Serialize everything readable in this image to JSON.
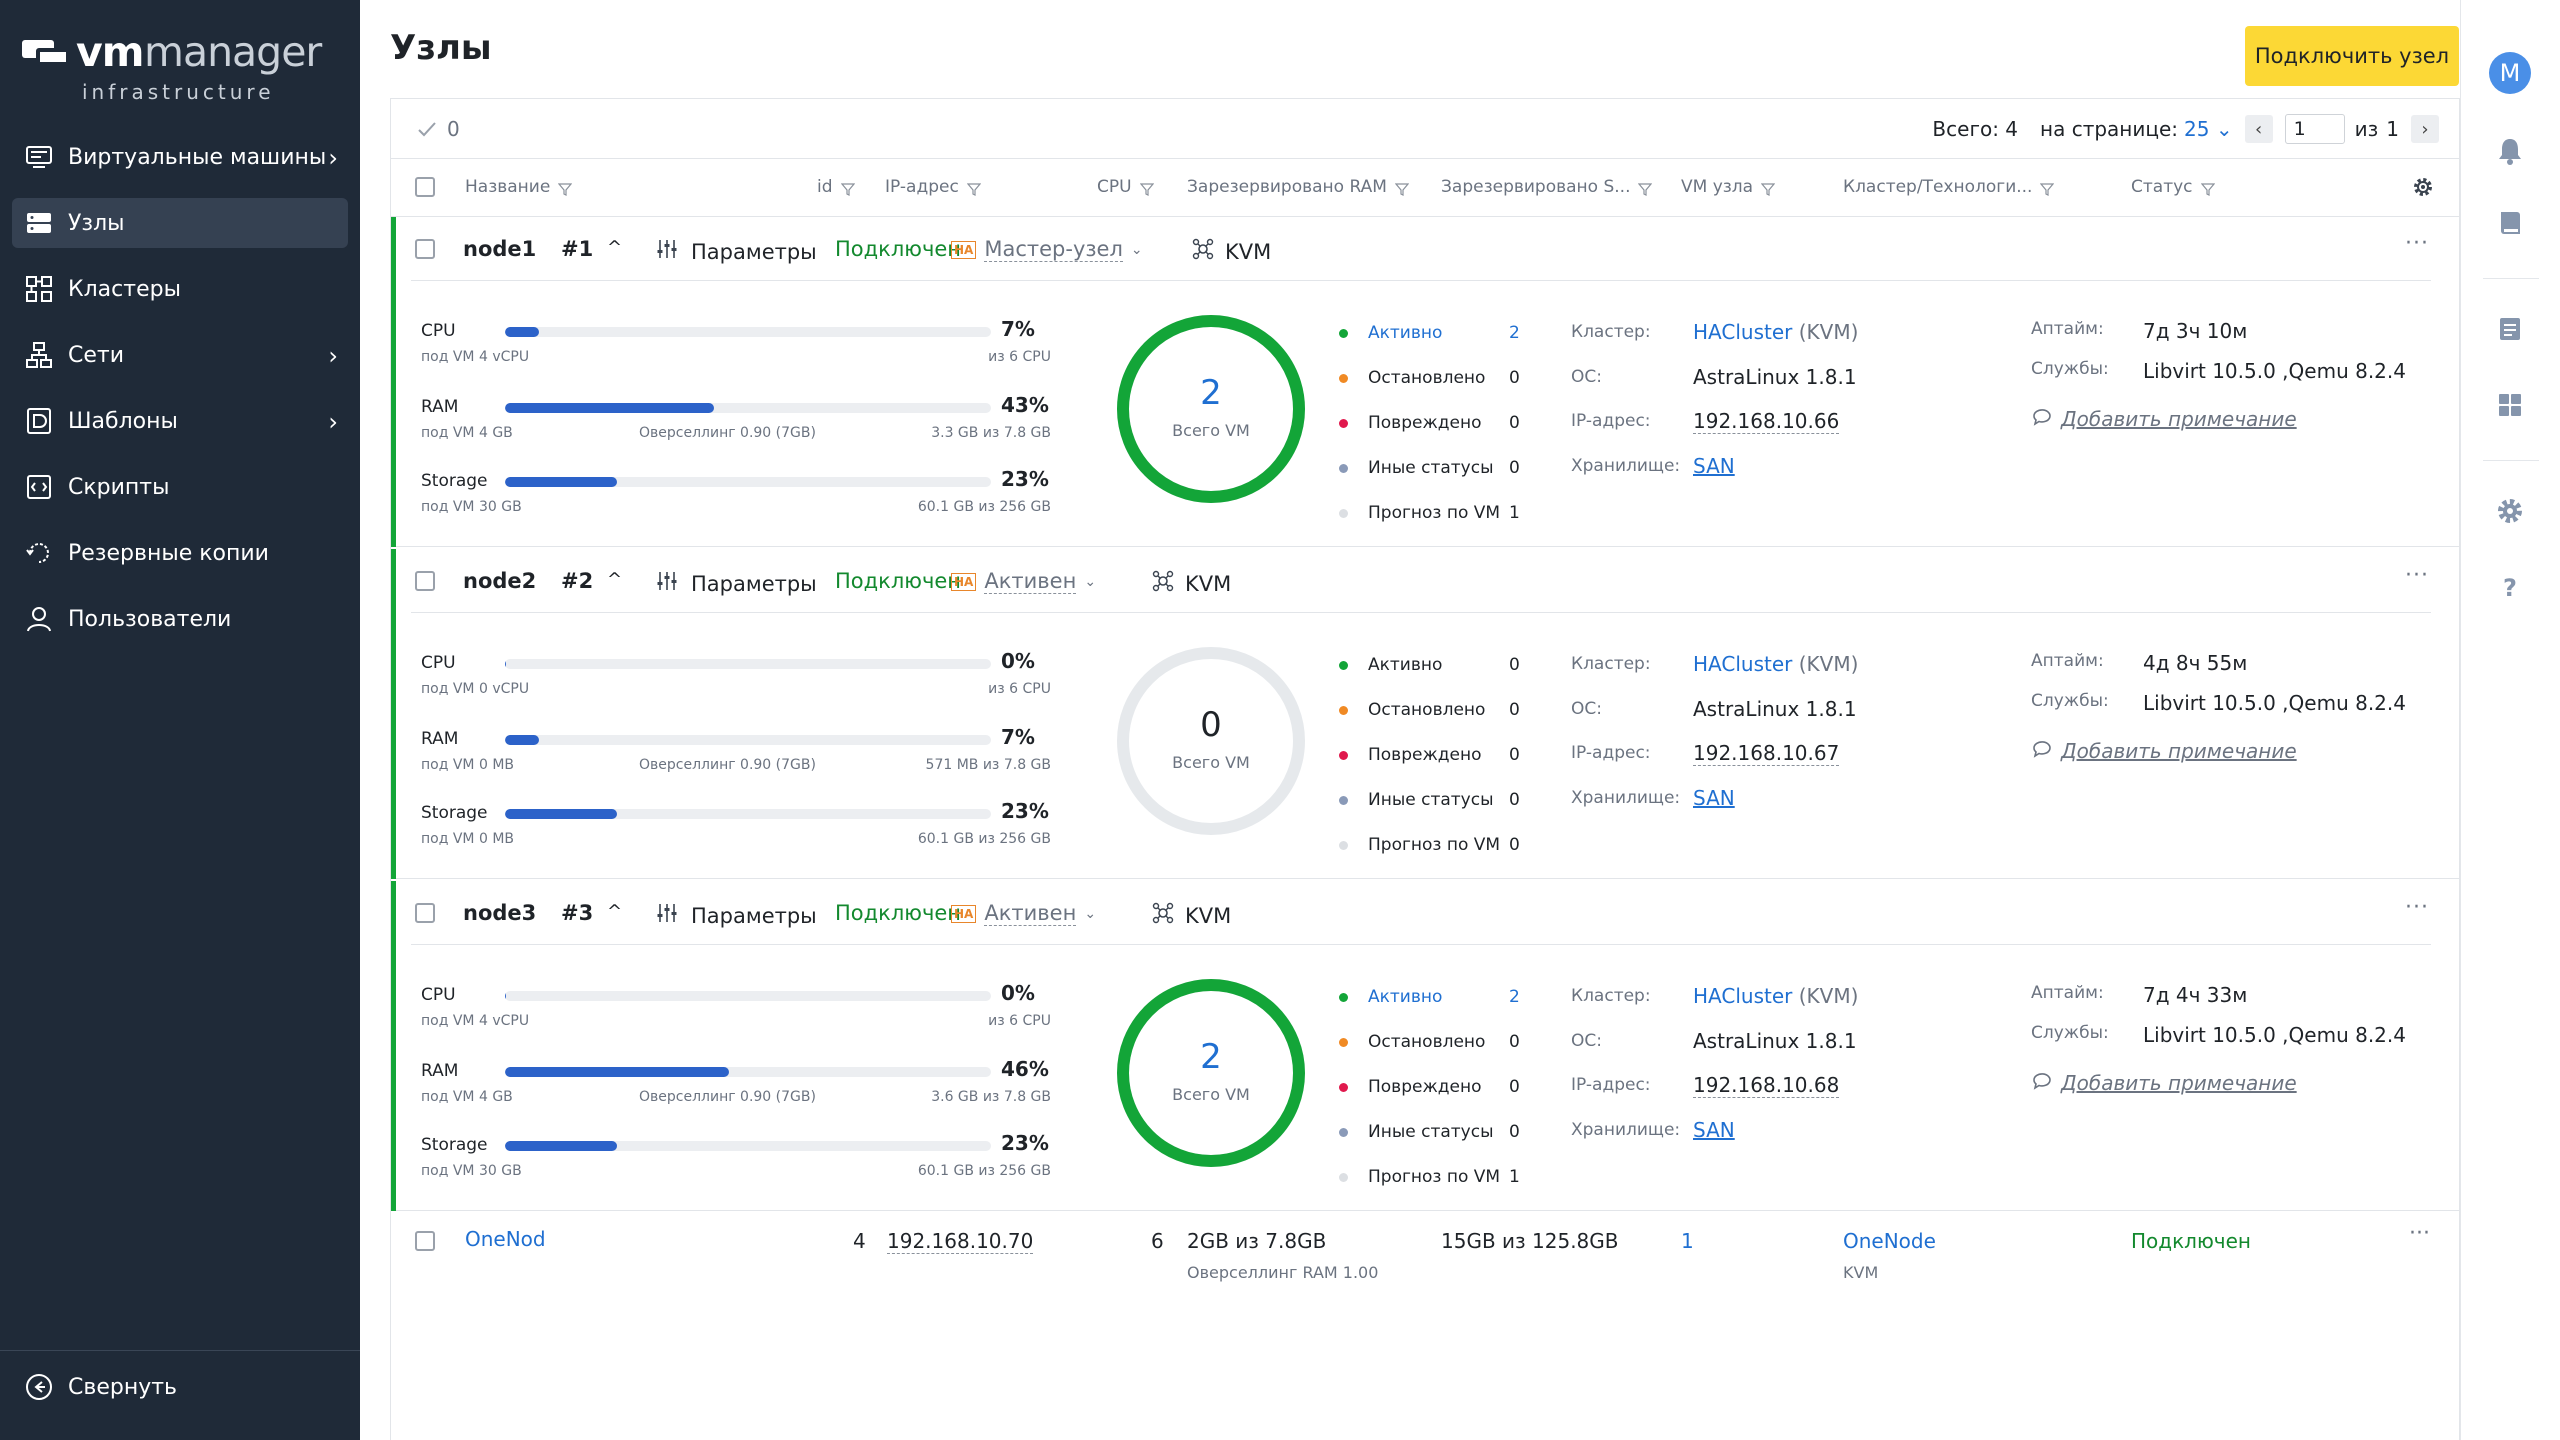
{
  "brand": {
    "vm": "vm",
    "manager": "manager",
    "sub": "infrastructure"
  },
  "sidebar": {
    "items": [
      {
        "label": "Виртуальные машины",
        "icon": "vm-icon",
        "chevron": true,
        "active": false
      },
      {
        "label": "Узлы",
        "icon": "server-icon",
        "chevron": false,
        "active": true
      },
      {
        "label": "Кластеры",
        "icon": "cluster-icon",
        "chevron": false,
        "active": false
      },
      {
        "label": "Сети",
        "icon": "network-icon",
        "chevron": true,
        "active": false
      },
      {
        "label": "Шаблоны",
        "icon": "template-icon",
        "chevron": true,
        "active": false
      },
      {
        "label": "Скрипты",
        "icon": "script-icon",
        "chevron": false,
        "active": false
      },
      {
        "label": "Резервные копии",
        "icon": "backup-icon",
        "chevron": false,
        "active": false
      },
      {
        "label": "Пользователи",
        "icon": "user-icon",
        "chevron": false,
        "active": false
      }
    ],
    "collapse_label": "Свернуть"
  },
  "rail": {
    "avatar_letter": "M",
    "icons": [
      "bell-icon",
      "book-icon",
      "list-icon",
      "grid-icon",
      "gear-icon",
      "help-icon"
    ]
  },
  "header": {
    "title": "Узлы",
    "connect_button": "Подключить узел"
  },
  "toolbar": {
    "selected": "0",
    "total_label": "Всего: 4",
    "per_page_label": "на странице:",
    "per_page": "25 ⌄",
    "page": "1",
    "of_label": "из",
    "pages": "1"
  },
  "columns": [
    "Название",
    "id",
    "IP-адрес",
    "CPU",
    "Зарезервировано RAM",
    "Зарезервировано S...",
    "VM узла",
    "Кластер/Технологи...",
    "Статус"
  ],
  "labels": {
    "params": "Параметры",
    "cpu": "CPU",
    "ram": "RAM",
    "storage": "Storage",
    "total_vm": "Всего VM",
    "st_active": "Активно",
    "st_stopped": "Остановлено",
    "st_damaged": "Повреждено",
    "st_other": "Иные статусы",
    "st_forecast": "Прогноз по VM",
    "k_cluster": "Кластер:",
    "k_os": "ОС:",
    "k_ip": "IP-адрес:",
    "k_storage": "Хранилище:",
    "k_uptime": "Аптайм:",
    "k_services": "Службы:",
    "add_note": "Добавить примечание",
    "kvm": "KVM",
    "ha_badge": "HA"
  },
  "colors": {
    "accent_green": "#13a538",
    "bar_blue": "#2c62c9",
    "brand_yellow": "#fcd835",
    "sidebar_bg": "#1f2a38",
    "dot_active": "#13a538",
    "dot_stopped": "#f08a24",
    "dot_damaged": "#e0194d",
    "dot_other": "#8a9ab8",
    "dot_forecast": "#dcdfe3"
  },
  "nodes": [
    {
      "name": "node1",
      "num": "#1",
      "caret": "^",
      "state": "Подключен",
      "role": "Мастер-узел",
      "cpu": {
        "pct": 7,
        "pct_label": "7%",
        "sub": "под VM 4 vCPU",
        "mid": "",
        "right": "из 6 CPU"
      },
      "ram": {
        "pct": 43,
        "pct_label": "43%",
        "sub": "под VM 4 GB",
        "mid": "Оверселлинг 0.90 (7GB)",
        "right": "3.3 GB из 7.8 GB"
      },
      "storage": {
        "pct": 23,
        "pct_label": "23%",
        "sub": "под VM 30 GB",
        "mid": "",
        "right": "60.1 GB из 256 GB"
      },
      "total_vm": "2",
      "ring_fraction": 1.0,
      "vm_counts": [
        "2",
        "0",
        "0",
        "0",
        "1"
      ],
      "active_highlight": true,
      "cluster": "HACluster",
      "cluster_tech": " (KVM)",
      "os": "AstraLinux 1.8.1",
      "ip": "192.168.10.66",
      "storage_name": "SAN",
      "uptime": "7д 3ч 10м",
      "services": "Libvirt  10.5.0 ,Qemu  8.2.4"
    },
    {
      "name": "node2",
      "num": "#2",
      "caret": "^",
      "state": "Подключен",
      "role": "Активен",
      "cpu": {
        "pct": 0,
        "pct_label": "0%",
        "sub": "под VM 0 vCPU",
        "mid": "",
        "right": "из 6 CPU"
      },
      "ram": {
        "pct": 7,
        "pct_label": "7%",
        "sub": "под VM 0 MB",
        "mid": "Оверселлинг 0.90 (7GB)",
        "right": "571 MB из 7.8 GB"
      },
      "storage": {
        "pct": 23,
        "pct_label": "23%",
        "sub": "под VM 0 MB",
        "mid": "",
        "right": "60.1 GB из 256 GB"
      },
      "total_vm": "0",
      "ring_fraction": 0.0,
      "vm_counts": [
        "0",
        "0",
        "0",
        "0",
        "0"
      ],
      "active_highlight": false,
      "cluster": "HACluster",
      "cluster_tech": " (KVM)",
      "os": "AstraLinux 1.8.1",
      "ip": "192.168.10.67",
      "storage_name": "SAN",
      "uptime": "4д 8ч 55м",
      "services": "Libvirt  10.5.0 ,Qemu  8.2.4"
    },
    {
      "name": "node3",
      "num": "#3",
      "caret": "^",
      "state": "Подключен",
      "role": "Активен",
      "cpu": {
        "pct": 0,
        "pct_label": "0%",
        "sub": "под VM 4 vCPU",
        "mid": "",
        "right": "из 6 CPU"
      },
      "ram": {
        "pct": 46,
        "pct_label": "46%",
        "sub": "под VM 4 GB",
        "mid": "Оверселлинг 0.90 (7GB)",
        "right": "3.6 GB из 7.8 GB"
      },
      "storage": {
        "pct": 23,
        "pct_label": "23%",
        "sub": "под VM 30 GB",
        "mid": "",
        "right": "60.1 GB из 256 GB"
      },
      "total_vm": "2",
      "ring_fraction": 1.0,
      "vm_counts": [
        "2",
        "0",
        "0",
        "0",
        "1"
      ],
      "active_highlight": true,
      "cluster": "HACluster",
      "cluster_tech": " (KVM)",
      "os": "AstraLinux 1.8.1",
      "ip": "192.168.10.68",
      "storage_name": "SAN",
      "uptime": "7д 4ч 33м",
      "services": "Libvirt  10.5.0 ,Qemu  8.2.4"
    }
  ],
  "onenode": {
    "name": "OneNod",
    "id": "4",
    "ip": "192.168.10.70",
    "cpu": "6",
    "ram": "2GB из 7.8GB",
    "ram_sub": "Оверселлинг RAM 1.00",
    "storage": "15GB из 125.8GB",
    "vms": "1",
    "cluster": "OneNode",
    "cluster_sub": "KVM",
    "status": "Подключен"
  }
}
